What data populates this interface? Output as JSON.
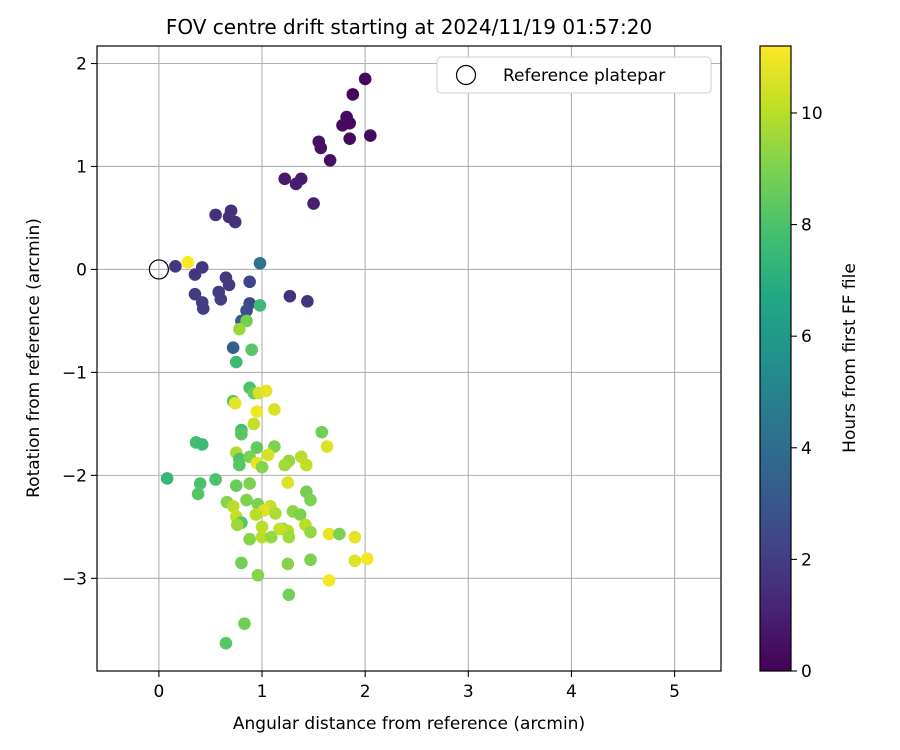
{
  "chart_data": {
    "type": "scatter",
    "title": "FOV centre drift starting at 2024/11/19 01:57:20",
    "xlabel": "Angular distance from reference (arcmin)",
    "ylabel": "Rotation from reference (arcmin)",
    "xlim": [
      -0.6,
      5.45
    ],
    "ylim": [
      -3.9,
      2.17
    ],
    "xticks": [
      "0",
      "1",
      "2",
      "3",
      "4",
      "5"
    ],
    "yticks": [
      "−3",
      "−2",
      "−1",
      "0",
      "1",
      "2"
    ],
    "grid": true,
    "legend": {
      "placement": "top-right",
      "label": "Reference platepar"
    },
    "reference_point": {
      "x": 0,
      "y": 0
    },
    "colorbar": {
      "label": "Hours from first FF file",
      "range": [
        0,
        11.2
      ],
      "ticks": [
        "0",
        "2",
        "4",
        "6",
        "8",
        "10"
      ],
      "colormap": "viridis"
    },
    "points": [
      {
        "x": 2.0,
        "y": 1.85,
        "h": 0.2
      },
      {
        "x": 1.88,
        "y": 1.7,
        "h": 0.2
      },
      {
        "x": 1.82,
        "y": 1.48,
        "h": 0.3
      },
      {
        "x": 1.85,
        "y": 1.42,
        "h": 0.3
      },
      {
        "x": 1.78,
        "y": 1.4,
        "h": 0.3
      },
      {
        "x": 2.05,
        "y": 1.3,
        "h": 0.3
      },
      {
        "x": 1.85,
        "y": 1.27,
        "h": 0.3
      },
      {
        "x": 1.55,
        "y": 1.24,
        "h": 0.5
      },
      {
        "x": 1.57,
        "y": 1.18,
        "h": 0.5
      },
      {
        "x": 1.66,
        "y": 1.06,
        "h": 0.5
      },
      {
        "x": 1.22,
        "y": 0.88,
        "h": 0.8
      },
      {
        "x": 1.38,
        "y": 0.88,
        "h": 0.8
      },
      {
        "x": 1.33,
        "y": 0.83,
        "h": 0.9
      },
      {
        "x": 1.5,
        "y": 0.64,
        "h": 0.9
      },
      {
        "x": 0.55,
        "y": 0.53,
        "h": 1.5
      },
      {
        "x": 0.7,
        "y": 0.57,
        "h": 1.5
      },
      {
        "x": 0.68,
        "y": 0.51,
        "h": 1.5
      },
      {
        "x": 0.74,
        "y": 0.46,
        "h": 1.6
      },
      {
        "x": 0.28,
        "y": 0.07,
        "h": 11.2
      },
      {
        "x": 0.16,
        "y": 0.03,
        "h": 1.8
      },
      {
        "x": 0.42,
        "y": 0.02,
        "h": 1.8
      },
      {
        "x": 0.35,
        "y": -0.05,
        "h": 1.8
      },
      {
        "x": 0.65,
        "y": -0.08,
        "h": 1.9
      },
      {
        "x": 0.68,
        "y": -0.15,
        "h": 1.9
      },
      {
        "x": 0.58,
        "y": -0.22,
        "h": 1.9
      },
      {
        "x": 0.35,
        "y": -0.24,
        "h": 1.9
      },
      {
        "x": 0.6,
        "y": -0.29,
        "h": 2.0
      },
      {
        "x": 0.42,
        "y": -0.32,
        "h": 2.0
      },
      {
        "x": 0.43,
        "y": -0.38,
        "h": 2.0
      },
      {
        "x": 1.27,
        "y": -0.26,
        "h": 1.6
      },
      {
        "x": 1.44,
        "y": -0.31,
        "h": 1.7
      },
      {
        "x": 0.88,
        "y": -0.12,
        "h": 2.2
      },
      {
        "x": 0.98,
        "y": 0.06,
        "h": 4.2
      },
      {
        "x": 0.88,
        "y": -0.33,
        "h": 2.4
      },
      {
        "x": 0.85,
        "y": -0.4,
        "h": 2.6
      },
      {
        "x": 0.8,
        "y": -0.5,
        "h": 3.2
      },
      {
        "x": 0.98,
        "y": -0.35,
        "h": 7.6
      },
      {
        "x": 0.85,
        "y": -0.5,
        "h": 8.8
      },
      {
        "x": 0.78,
        "y": -0.58,
        "h": 9.5
      },
      {
        "x": 0.72,
        "y": -0.76,
        "h": 3.3
      },
      {
        "x": 0.75,
        "y": -0.9,
        "h": 7.6
      },
      {
        "x": 0.9,
        "y": -0.78,
        "h": 8.2
      },
      {
        "x": 0.88,
        "y": -1.15,
        "h": 8.0
      },
      {
        "x": 0.92,
        "y": -1.2,
        "h": 8.6
      },
      {
        "x": 0.97,
        "y": -1.2,
        "h": 10.5
      },
      {
        "x": 1.04,
        "y": -1.18,
        "h": 10.8
      },
      {
        "x": 0.72,
        "y": -1.28,
        "h": 8.3
      },
      {
        "x": 0.74,
        "y": -1.3,
        "h": 10.8
      },
      {
        "x": 0.95,
        "y": -1.38,
        "h": 11.0
      },
      {
        "x": 1.12,
        "y": -1.36,
        "h": 10.5
      },
      {
        "x": 0.92,
        "y": -1.5,
        "h": 10.2
      },
      {
        "x": 0.8,
        "y": -1.56,
        "h": 7.8
      },
      {
        "x": 0.8,
        "y": -1.6,
        "h": 8.3
      },
      {
        "x": 1.58,
        "y": -1.58,
        "h": 8.8
      },
      {
        "x": 0.36,
        "y": -1.68,
        "h": 7.8
      },
      {
        "x": 0.42,
        "y": -1.7,
        "h": 7.6
      },
      {
        "x": 0.95,
        "y": -1.73,
        "h": 8.5
      },
      {
        "x": 1.12,
        "y": -1.72,
        "h": 9.0
      },
      {
        "x": 1.63,
        "y": -1.72,
        "h": 10.6
      },
      {
        "x": 0.75,
        "y": -1.78,
        "h": 9.8
      },
      {
        "x": 1.06,
        "y": -1.8,
        "h": 10.5
      },
      {
        "x": 0.78,
        "y": -1.84,
        "h": 8.0
      },
      {
        "x": 0.88,
        "y": -1.82,
        "h": 9.0
      },
      {
        "x": 0.95,
        "y": -1.88,
        "h": 10.8
      },
      {
        "x": 1.26,
        "y": -1.86,
        "h": 9.4
      },
      {
        "x": 1.38,
        "y": -1.82,
        "h": 10.0
      },
      {
        "x": 0.78,
        "y": -1.9,
        "h": 8.3
      },
      {
        "x": 1.0,
        "y": -1.92,
        "h": 9.2
      },
      {
        "x": 1.22,
        "y": -1.9,
        "h": 9.6
      },
      {
        "x": 1.43,
        "y": -1.9,
        "h": 10.1
      },
      {
        "x": 0.08,
        "y": -2.03,
        "h": 7.4
      },
      {
        "x": 0.55,
        "y": -2.04,
        "h": 8.0
      },
      {
        "x": 0.4,
        "y": -2.08,
        "h": 8.0
      },
      {
        "x": 0.75,
        "y": -2.1,
        "h": 8.6
      },
      {
        "x": 0.88,
        "y": -2.08,
        "h": 9.0
      },
      {
        "x": 1.25,
        "y": -2.07,
        "h": 10.6
      },
      {
        "x": 0.38,
        "y": -2.18,
        "h": 8.2
      },
      {
        "x": 1.43,
        "y": -2.16,
        "h": 8.8
      },
      {
        "x": 0.85,
        "y": -2.24,
        "h": 9.0
      },
      {
        "x": 1.47,
        "y": -2.24,
        "h": 9.0
      },
      {
        "x": 0.66,
        "y": -2.26,
        "h": 9.2
      },
      {
        "x": 0.72,
        "y": -2.3,
        "h": 10.0
      },
      {
        "x": 0.96,
        "y": -2.28,
        "h": 9.0
      },
      {
        "x": 1.08,
        "y": -2.3,
        "h": 10.2
      },
      {
        "x": 1.02,
        "y": -2.34,
        "h": 10.6
      },
      {
        "x": 1.3,
        "y": -2.35,
        "h": 9.3
      },
      {
        "x": 1.37,
        "y": -2.38,
        "h": 9.0
      },
      {
        "x": 1.13,
        "y": -2.37,
        "h": 9.8
      },
      {
        "x": 0.94,
        "y": -2.38,
        "h": 10.0
      },
      {
        "x": 0.75,
        "y": -2.4,
        "h": 10.2
      },
      {
        "x": 0.8,
        "y": -2.46,
        "h": 8.2
      },
      {
        "x": 0.76,
        "y": -2.48,
        "h": 9.5
      },
      {
        "x": 1.0,
        "y": -2.5,
        "h": 10.0
      },
      {
        "x": 1.2,
        "y": -2.52,
        "h": 9.2
      },
      {
        "x": 1.42,
        "y": -2.48,
        "h": 10.0
      },
      {
        "x": 1.25,
        "y": -2.54,
        "h": 10.0
      },
      {
        "x": 1.17,
        "y": -2.52,
        "h": 10.2
      },
      {
        "x": 1.47,
        "y": -2.55,
        "h": 9.4
      },
      {
        "x": 1.65,
        "y": -2.57,
        "h": 10.8
      },
      {
        "x": 1.75,
        "y": -2.57,
        "h": 9.0
      },
      {
        "x": 1.9,
        "y": -2.6,
        "h": 10.8
      },
      {
        "x": 1.0,
        "y": -2.6,
        "h": 10.0
      },
      {
        "x": 1.09,
        "y": -2.6,
        "h": 9.4
      },
      {
        "x": 1.26,
        "y": -2.6,
        "h": 9.6
      },
      {
        "x": 0.88,
        "y": -2.62,
        "h": 9.2
      },
      {
        "x": 1.47,
        "y": -2.82,
        "h": 9.0
      },
      {
        "x": 1.9,
        "y": -2.83,
        "h": 10.6
      },
      {
        "x": 2.02,
        "y": -2.81,
        "h": 11.0
      },
      {
        "x": 0.8,
        "y": -2.85,
        "h": 8.8
      },
      {
        "x": 1.25,
        "y": -2.86,
        "h": 9.2
      },
      {
        "x": 0.96,
        "y": -2.97,
        "h": 9.2
      },
      {
        "x": 1.65,
        "y": -3.02,
        "h": 11.0
      },
      {
        "x": 1.26,
        "y": -3.16,
        "h": 8.8
      },
      {
        "x": 0.83,
        "y": -3.44,
        "h": 8.8
      },
      {
        "x": 0.65,
        "y": -3.63,
        "h": 8.2
      }
    ]
  }
}
